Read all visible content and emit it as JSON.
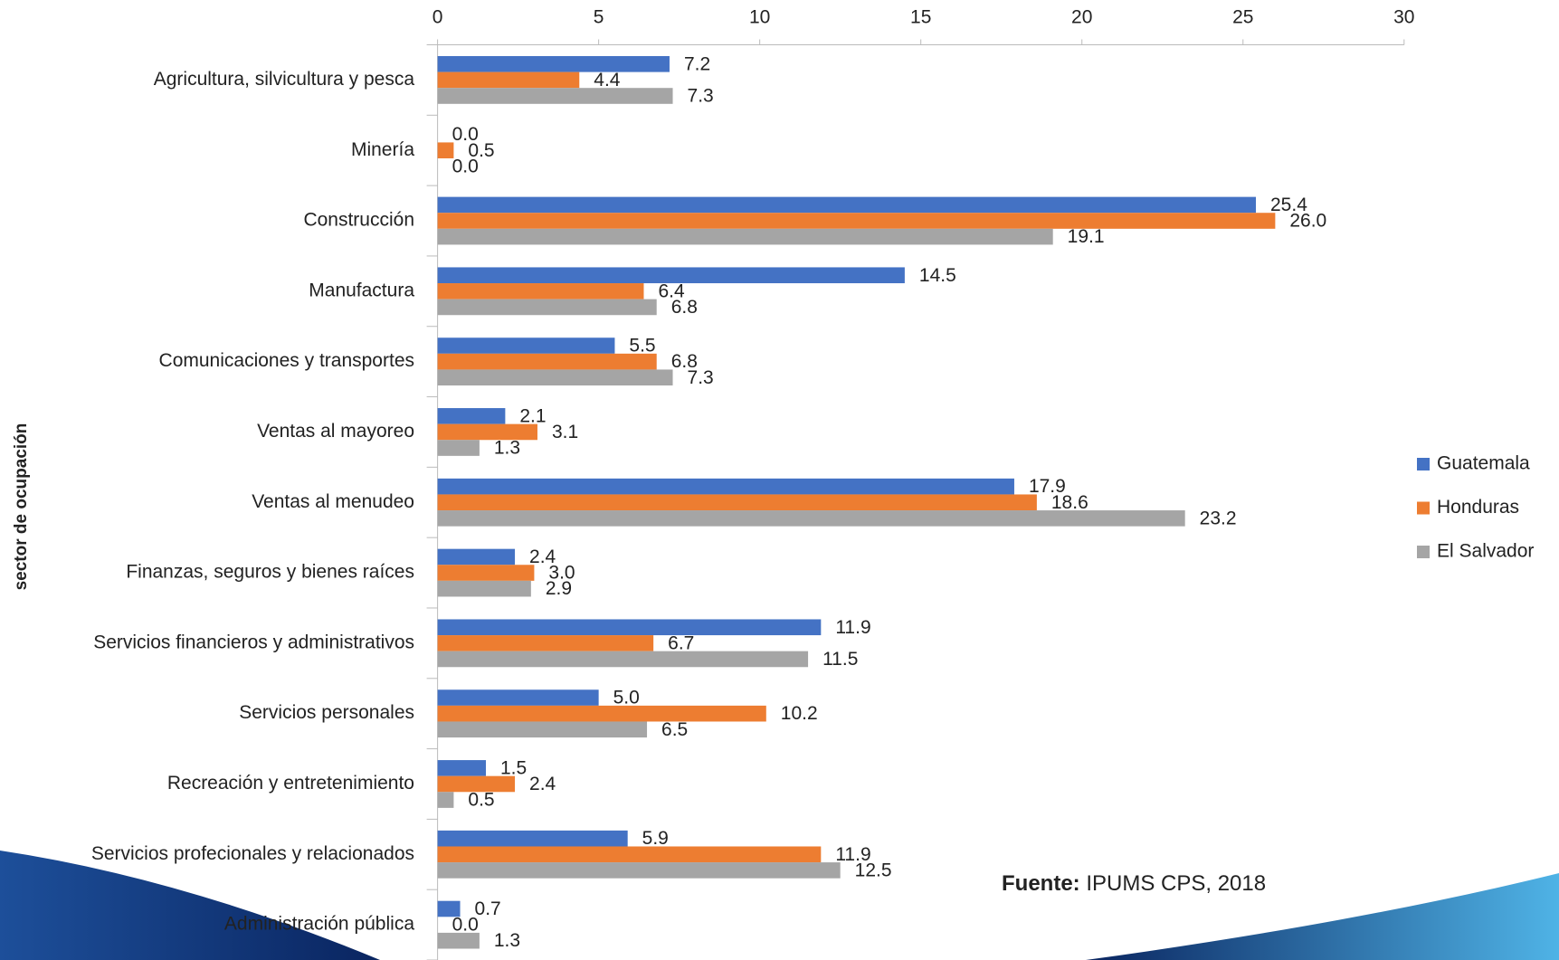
{
  "chart_data": {
    "type": "hbar",
    "y_label": "sector de ocupación",
    "categories": [
      "Agricultura, silvicultura y pesca",
      "Minería",
      "Construcción",
      "Manufactura",
      "Comunicaciones y transportes",
      "Ventas al mayoreo",
      "Ventas al menudeo",
      "Finanzas, seguros y bienes raíces",
      "Servicios financieros y administrativos",
      "Servicios personales",
      "Recreación y entretenimiento",
      "Servicios profecionales y relacionados",
      "Administración pública"
    ],
    "series": [
      {
        "name": "Guatemala",
        "color": "#4472c4",
        "values": [
          7.2,
          0.0,
          25.4,
          14.5,
          5.5,
          2.1,
          17.9,
          2.4,
          11.9,
          5.0,
          1.5,
          5.9,
          0.7
        ],
        "value_labels": [
          "7.2",
          "0.0",
          "25.4",
          "14.5",
          "5.5",
          "2.1",
          "17.9",
          "2.4",
          "11.9",
          "5.0",
          "1.5",
          "5.9",
          "0.7"
        ]
      },
      {
        "name": "Honduras",
        "color": "#ed7d31",
        "values": [
          4.4,
          0.5,
          26.0,
          6.4,
          6.8,
          3.1,
          18.6,
          3.0,
          6.7,
          10.2,
          2.4,
          11.9,
          0.0
        ],
        "value_labels": [
          "4.4",
          "0.5",
          "26.0",
          "6.4",
          "6.8",
          "3.1",
          "18.6",
          "3.0",
          "6.7",
          "10.2",
          "2.4",
          "11.9",
          "0.0"
        ]
      },
      {
        "name": "El Salvador",
        "color": "#a5a5a5",
        "values": [
          7.3,
          0.0,
          19.1,
          6.8,
          7.3,
          1.3,
          23.2,
          2.9,
          11.5,
          6.5,
          0.5,
          12.5,
          1.3
        ],
        "value_labels": [
          "7.3",
          "0.0",
          "19.1",
          "6.8",
          "7.3",
          "1.3",
          "23.2",
          "2.9",
          "11.5",
          "6.5",
          "0.5",
          "12.5",
          "1.3"
        ]
      }
    ],
    "xlim": [
      0,
      30
    ],
    "xticks": [
      0,
      5,
      10,
      15,
      20,
      25,
      30
    ],
    "grid": false,
    "legend": "right",
    "source_label": "Fuente:",
    "source": "IPUMS CPS, 2018"
  }
}
